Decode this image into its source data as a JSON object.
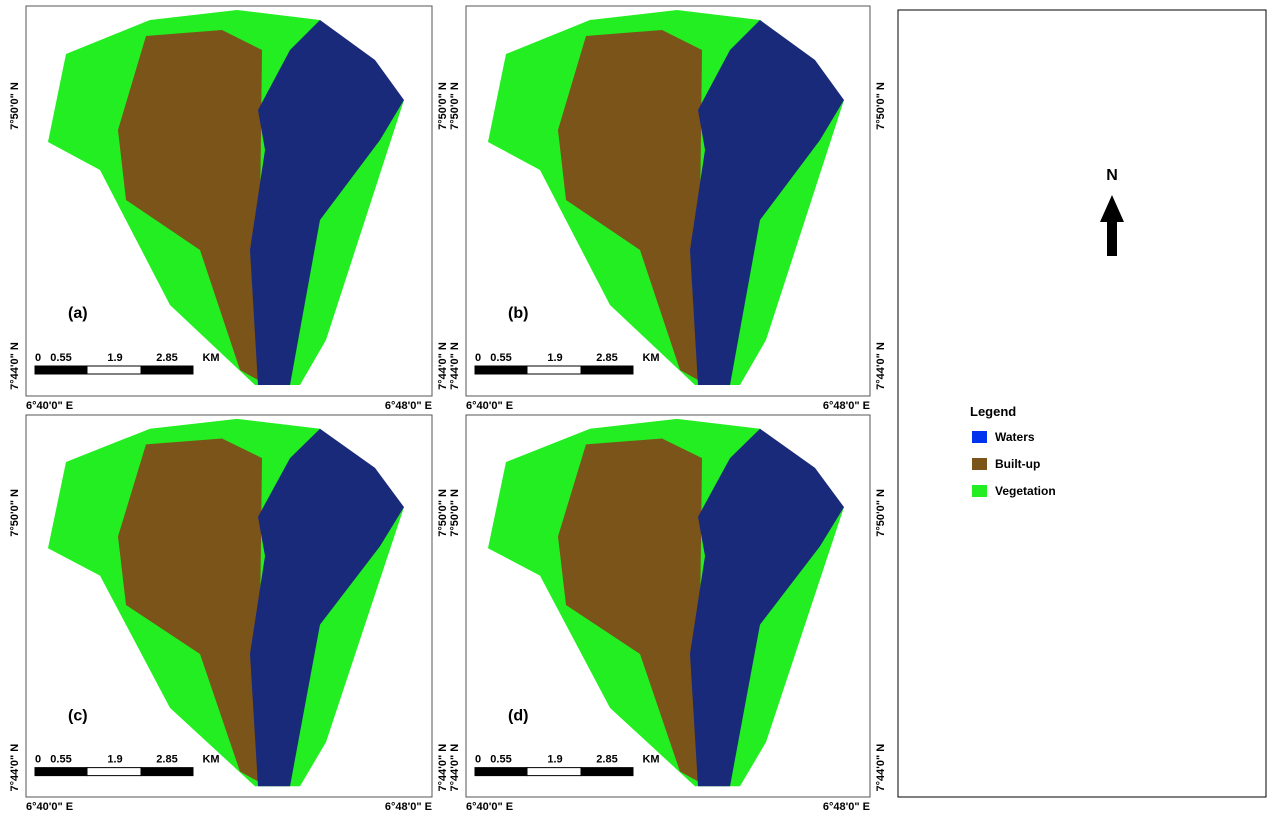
{
  "panels": [
    {
      "label": "(a)",
      "lat_labels": [
        "7°50'0\" N",
        "7°44'0\" N"
      ],
      "lon_labels": [
        "6°40'0\" E",
        "6°48'0\" E"
      ],
      "scale_labels": [
        "0",
        "0.55",
        "1.9",
        "2.85",
        "KM"
      ]
    },
    {
      "label": "(b)",
      "lat_labels": [
        "7°50'0\" N",
        "7°44'0\" N"
      ],
      "lon_labels": [
        "6°40'0\" E",
        "6°48'0\" E"
      ],
      "scale_labels": [
        "0",
        "0.55",
        "1.9",
        "2.85",
        "KM"
      ]
    },
    {
      "label": "(c)",
      "lat_labels": [
        "7°50'0\" N",
        "7°44'0\" N"
      ],
      "lon_labels": [
        "6°40'0\" E",
        "6°48'0\" E"
      ],
      "scale_labels": [
        "0",
        "0.55",
        "1.9",
        "2.85",
        "KM"
      ]
    },
    {
      "label": "(d)",
      "lat_labels": [
        "7°50'0\" N",
        "7°44'0\" N"
      ],
      "lon_labels": [
        "6°40'0\" E",
        "6°48'0\" E"
      ],
      "scale_labels": [
        "0",
        "0.55",
        "1.9",
        "2.85",
        "KM"
      ]
    }
  ],
  "north_arrow": "N",
  "legend": {
    "title": "Legend",
    "items": [
      {
        "name": "Waters",
        "color": "#0033ee"
      },
      {
        "name": "Built-up",
        "color": "#7a5418"
      },
      {
        "name": "Vegetation",
        "color": "#22ee22"
      }
    ]
  }
}
